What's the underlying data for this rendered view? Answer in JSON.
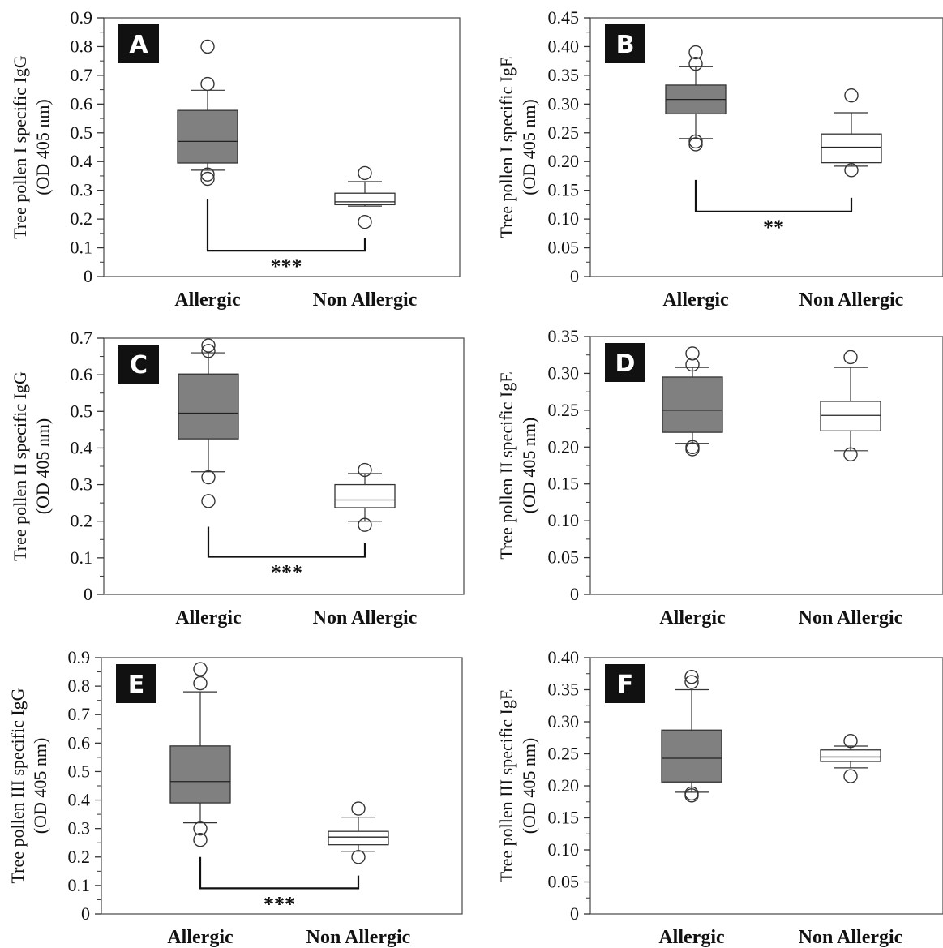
{
  "chart_data": [
    {
      "type": "box",
      "panel": "A",
      "ylabel": [
        "Tree pollen I specific IgG",
        "(OD 405 nm)"
      ],
      "ylim": [
        0,
        0.9
      ],
      "yticks": [
        "0",
        "0.1",
        "0.2",
        "0.3",
        "0.4",
        "0.5",
        "0.6",
        "0.7",
        "0.8",
        "0.9"
      ],
      "categories": [
        "Allergic",
        "Non Allergic"
      ],
      "boxes": [
        {
          "group": "Allergic",
          "fill": "#808080",
          "whisker_low": 0.37,
          "q1": 0.395,
          "median": 0.47,
          "q3": 0.578,
          "whisker_high": 0.648,
          "outliers": [
            0.8,
            0.67,
            0.355,
            0.34
          ]
        },
        {
          "group": "Non Allergic",
          "fill": "#ffffff",
          "whisker_low": 0.245,
          "q1": 0.25,
          "median": 0.26,
          "q3": 0.29,
          "whisker_high": 0.33,
          "outliers": [
            0.36,
            0.19
          ]
        }
      ],
      "significance": {
        "label": "***",
        "y": 0.09,
        "left_top": 0.27,
        "right_top": 0.135
      }
    },
    {
      "type": "box",
      "panel": "B",
      "ylabel": [
        "Tree pollen I specific IgE",
        "(OD 405 nm)"
      ],
      "ylim": [
        0,
        0.45
      ],
      "yticks": [
        "0",
        "0.05",
        "0.10",
        "0.15",
        "0.20",
        "0.25",
        "0.30",
        "0.35",
        "0.40",
        "0.45"
      ],
      "categories": [
        "Allergic",
        "Non Allergic"
      ],
      "boxes": [
        {
          "group": "Allergic",
          "fill": "#808080",
          "whisker_low": 0.24,
          "q1": 0.283,
          "median": 0.308,
          "q3": 0.333,
          "whisker_high": 0.365,
          "outliers": [
            0.39,
            0.37,
            0.235,
            0.23
          ]
        },
        {
          "group": "Non Allergic",
          "fill": "#ffffff",
          "whisker_low": 0.192,
          "q1": 0.198,
          "median": 0.225,
          "q3": 0.248,
          "whisker_high": 0.285,
          "outliers": [
            0.315,
            0.185
          ]
        }
      ],
      "significance": {
        "label": "**",
        "y": 0.113,
        "left_top": 0.168,
        "right_top": 0.137
      }
    },
    {
      "type": "box",
      "panel": "C",
      "ylabel": [
        "Tree pollen II specific IgG",
        "(OD 405 nm)"
      ],
      "ylim": [
        0,
        0.7
      ],
      "yticks": [
        "0",
        "0.1",
        "0.2",
        "0.3",
        "0.4",
        "0.5",
        "0.6",
        "0.7"
      ],
      "categories": [
        "Allergic",
        "Non Allergic"
      ],
      "boxes": [
        {
          "group": "Allergic",
          "fill": "#808080",
          "whisker_low": 0.335,
          "q1": 0.425,
          "median": 0.495,
          "q3": 0.602,
          "whisker_high": 0.66,
          "outliers": [
            0.68,
            0.665,
            0.32,
            0.255
          ]
        },
        {
          "group": "Non Allergic",
          "fill": "#ffffff",
          "whisker_low": 0.2,
          "q1": 0.237,
          "median": 0.258,
          "q3": 0.3,
          "whisker_high": 0.33,
          "outliers": [
            0.34,
            0.19
          ]
        }
      ],
      "significance": {
        "label": "***",
        "y": 0.103,
        "left_top": 0.185,
        "right_top": 0.14
      }
    },
    {
      "type": "box",
      "panel": "D",
      "ylabel": [
        "Tree pollen II specific IgE",
        "(OD 405 nm)"
      ],
      "ylim": [
        0,
        0.35
      ],
      "yticks": [
        "0",
        "0.05",
        "0.10",
        "0.15",
        "0.20",
        "0.25",
        "0.30",
        "0.35"
      ],
      "categories": [
        "Allergic",
        "Non Allergic"
      ],
      "boxes": [
        {
          "group": "Allergic",
          "fill": "#808080",
          "whisker_low": 0.205,
          "q1": 0.22,
          "median": 0.25,
          "q3": 0.295,
          "whisker_high": 0.308,
          "outliers": [
            0.327,
            0.312,
            0.2,
            0.197
          ]
        },
        {
          "group": "Non Allergic",
          "fill": "#ffffff",
          "whisker_low": 0.195,
          "q1": 0.222,
          "median": 0.243,
          "q3": 0.262,
          "whisker_high": 0.308,
          "outliers": [
            0.322,
            0.19
          ]
        }
      ],
      "significance": null
    },
    {
      "type": "box",
      "panel": "E",
      "ylabel": [
        "Tree pollen III specific IgG",
        "(OD 405 nm)"
      ],
      "ylim": [
        0,
        0.9
      ],
      "yticks": [
        "0",
        "0.1",
        "0.2",
        "0.3",
        "0.4",
        "0.5",
        "0.6",
        "0.7",
        "0.8",
        "0.9"
      ],
      "categories": [
        "Allergic",
        "Non Allergic"
      ],
      "boxes": [
        {
          "group": "Allergic",
          "fill": "#808080",
          "whisker_low": 0.32,
          "q1": 0.39,
          "median": 0.465,
          "q3": 0.59,
          "whisker_high": 0.78,
          "outliers": [
            0.86,
            0.81,
            0.3,
            0.26
          ]
        },
        {
          "group": "Non Allergic",
          "fill": "#ffffff",
          "whisker_low": 0.22,
          "q1": 0.243,
          "median": 0.27,
          "q3": 0.29,
          "whisker_high": 0.34,
          "outliers": [
            0.37,
            0.2
          ]
        }
      ],
      "significance": {
        "label": "***",
        "y": 0.09,
        "left_top": 0.2,
        "right_top": 0.135
      }
    },
    {
      "type": "box",
      "panel": "F",
      "ylabel": [
        "Tree pollen III specific IgE",
        "(OD 405 nm)"
      ],
      "ylim": [
        0,
        0.4
      ],
      "yticks": [
        "0",
        "0.05",
        "0.10",
        "0.15",
        "0.20",
        "0.25",
        "0.30",
        "0.35",
        "0.40"
      ],
      "categories": [
        "Allergic",
        "Non Allergic"
      ],
      "boxes": [
        {
          "group": "Allergic",
          "fill": "#808080",
          "whisker_low": 0.19,
          "q1": 0.206,
          "median": 0.243,
          "q3": 0.287,
          "whisker_high": 0.35,
          "outliers": [
            0.37,
            0.362,
            0.188,
            0.185
          ]
        },
        {
          "group": "Non Allergic",
          "fill": "#ffffff",
          "whisker_low": 0.228,
          "q1": 0.238,
          "median": 0.245,
          "q3": 0.256,
          "whisker_high": 0.262,
          "outliers": [
            0.27,
            0.215
          ]
        }
      ],
      "significance": null
    }
  ]
}
